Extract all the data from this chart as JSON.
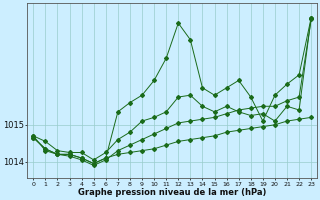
{
  "title": "",
  "xlabel": "Graphe pression niveau de la mer (hPa)",
  "background_color": "#cceeff",
  "grid_color": "#99cccc",
  "line_color": "#1a6b1a",
  "xlim": [
    -0.5,
    23.5
  ],
  "ylim": [
    1013.55,
    1018.3
  ],
  "yticks": [
    1014,
    1015
  ],
  "xticks": [
    0,
    1,
    2,
    3,
    4,
    5,
    6,
    7,
    8,
    9,
    10,
    11,
    12,
    13,
    14,
    15,
    16,
    17,
    18,
    19,
    20,
    21,
    22,
    23
  ],
  "series": [
    [
      1014.7,
      1014.55,
      1014.3,
      1014.25,
      1014.25,
      1014.05,
      1014.25,
      1014.6,
      1014.8,
      1015.1,
      1015.2,
      1015.35,
      1015.75,
      1015.8,
      1015.5,
      1015.35,
      1015.5,
      1015.35,
      1015.25,
      1015.3,
      1015.1,
      1015.5,
      1015.4,
      1017.9
    ],
    [
      1014.65,
      1014.35,
      1014.2,
      1014.2,
      1014.1,
      1013.95,
      1014.1,
      1014.2,
      1014.25,
      1014.3,
      1014.35,
      1014.45,
      1014.55,
      1014.6,
      1014.65,
      1014.7,
      1014.8,
      1014.85,
      1014.9,
      1014.95,
      1015.0,
      1015.1,
      1015.15,
      1015.2
    ],
    [
      1014.7,
      1014.3,
      1014.2,
      1014.2,
      1014.1,
      1013.95,
      1014.1,
      1015.35,
      1015.6,
      1015.8,
      1016.2,
      1016.8,
      1017.75,
      1017.3,
      1016.0,
      1015.8,
      1016.0,
      1016.2,
      1015.75,
      1015.1,
      1015.8,
      1016.1,
      1016.35,
      1017.9
    ],
    [
      1014.65,
      1014.35,
      1014.2,
      1014.15,
      1014.05,
      1013.9,
      1014.05,
      1014.3,
      1014.45,
      1014.6,
      1014.75,
      1014.9,
      1015.05,
      1015.1,
      1015.15,
      1015.2,
      1015.3,
      1015.4,
      1015.45,
      1015.5,
      1015.5,
      1015.65,
      1015.75,
      1017.85
    ]
  ]
}
